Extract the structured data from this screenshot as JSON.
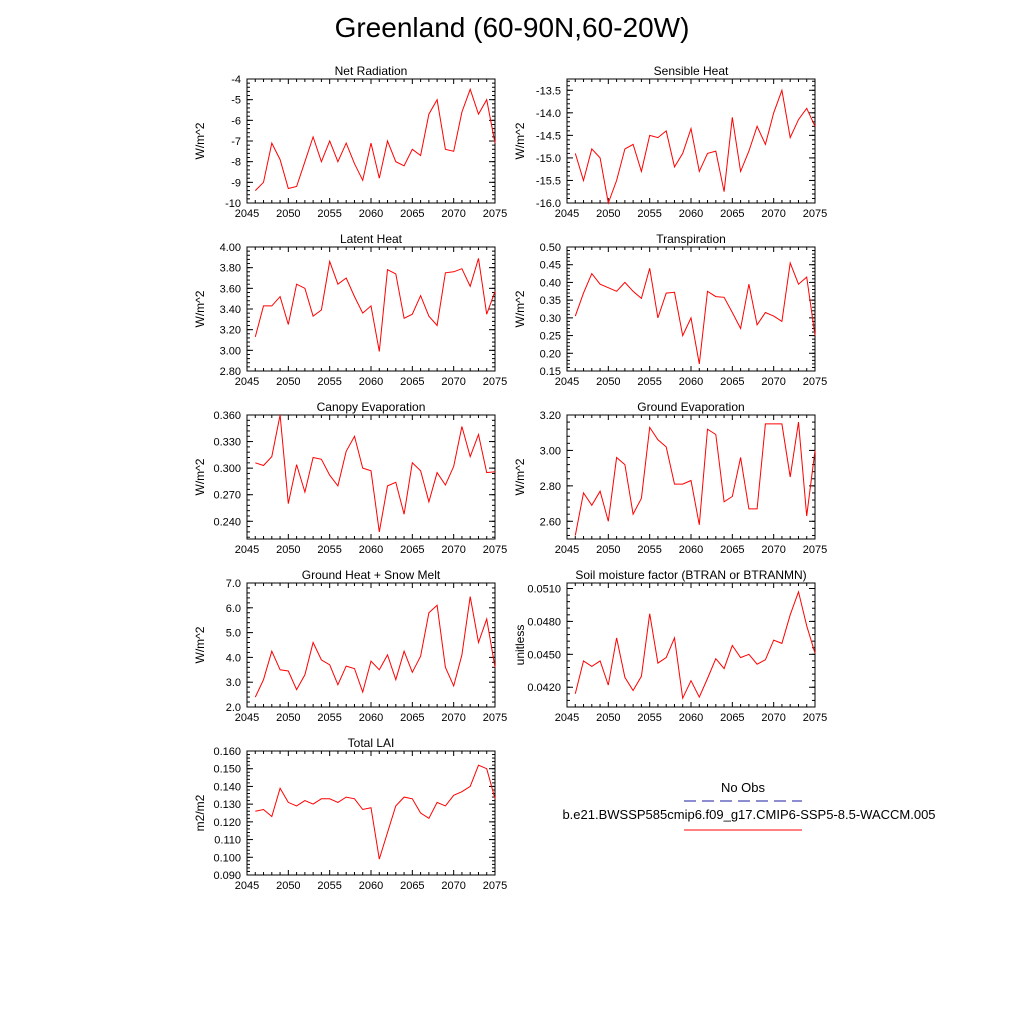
{
  "title": "Greenland (60-90N,60-20W)",
  "x_years": [
    2046,
    2047,
    2048,
    2049,
    2050,
    2051,
    2052,
    2053,
    2054,
    2055,
    2056,
    2057,
    2058,
    2059,
    2060,
    2061,
    2062,
    2063,
    2064,
    2065,
    2066,
    2067,
    2068,
    2069,
    2070,
    2071,
    2072,
    2073,
    2074,
    2075
  ],
  "legend": {
    "entries": [
      {
        "label": "No Obs",
        "color": "#1a1aa0",
        "dash": true
      },
      {
        "label": "b.e21.BWSSP585cmip6.f09_g17.CMIP6-SSP5-8.5-WACCM.005",
        "color": "#ff0000",
        "dash": false
      }
    ]
  },
  "series_color": "#ff0000",
  "chart_data": [
    {
      "type": "line",
      "title": "Net Radiation",
      "ylabel": "W/m^2",
      "xlim": [
        2045,
        2075
      ],
      "ylim": [
        -10,
        -4
      ],
      "xticks": [
        2045,
        2050,
        2055,
        2060,
        2065,
        2070,
        2075
      ],
      "yticks": [
        -10,
        -9,
        -8,
        -7,
        -6,
        -5,
        -4
      ],
      "ytick_labels": [
        "-10",
        "-9",
        "-8",
        "-7",
        "-6",
        "-5",
        "-4"
      ],
      "values": [
        -9.4,
        -9.0,
        -7.1,
        -7.9,
        -9.3,
        -9.2,
        -8.0,
        -6.8,
        -8.0,
        -7.0,
        -8.0,
        -7.1,
        -8.1,
        -8.9,
        -7.1,
        -8.8,
        -7.0,
        -8.0,
        -8.2,
        -7.4,
        -7.7,
        -5.7,
        -5.0,
        -7.4,
        -7.5,
        -5.6,
        -4.5,
        -5.7,
        -5.0,
        -7.1
      ]
    },
    {
      "type": "line",
      "title": "Sensible Heat",
      "ylabel": "W/m^2",
      "xlim": [
        2045,
        2075
      ],
      "ylim": [
        -16,
        -13.25
      ],
      "xticks": [
        2045,
        2050,
        2055,
        2060,
        2065,
        2070,
        2075
      ],
      "yticks": [
        -16,
        -15.5,
        -15,
        -14.5,
        -14,
        -13.5
      ],
      "ytick_labels": [
        "-16.0",
        "-15.5",
        "-15.0",
        "-14.5",
        "-14.0",
        "-13.5"
      ],
      "values": [
        -14.9,
        -15.5,
        -14.8,
        -15.0,
        -16.0,
        -15.5,
        -14.8,
        -14.7,
        -15.3,
        -14.5,
        -14.55,
        -14.4,
        -15.2,
        -14.9,
        -14.35,
        -15.3,
        -14.9,
        -14.85,
        -15.75,
        -14.1,
        -15.3,
        -14.85,
        -14.3,
        -14.7,
        -14.0,
        -13.5,
        -14.55,
        -14.15,
        -13.9,
        -14.3
      ]
    },
    {
      "type": "line",
      "title": "Latent Heat",
      "ylabel": "W/m^2",
      "xlim": [
        2045,
        2075
      ],
      "ylim": [
        2.8,
        4.0
      ],
      "xticks": [
        2045,
        2050,
        2055,
        2060,
        2065,
        2070,
        2075
      ],
      "yticks": [
        2.8,
        3.0,
        3.2,
        3.4,
        3.6,
        3.8,
        4.0
      ],
      "ytick_labels": [
        "2.80",
        "3.00",
        "3.20",
        "3.40",
        "3.60",
        "3.80",
        "4.00"
      ],
      "values": [
        3.13,
        3.43,
        3.43,
        3.52,
        3.25,
        3.64,
        3.6,
        3.33,
        3.39,
        3.86,
        3.64,
        3.7,
        3.52,
        3.36,
        3.43,
        2.99,
        3.78,
        3.74,
        3.31,
        3.35,
        3.53,
        3.33,
        3.24,
        3.75,
        3.76,
        3.79,
        3.62,
        3.89,
        3.35,
        3.57
      ]
    },
    {
      "type": "line",
      "title": "Transpiration",
      "ylabel": "W/m^2",
      "xlim": [
        2045,
        2075
      ],
      "ylim": [
        0.15,
        0.5
      ],
      "xticks": [
        2045,
        2050,
        2055,
        2060,
        2065,
        2070,
        2075
      ],
      "yticks": [
        0.15,
        0.2,
        0.25,
        0.3,
        0.35,
        0.4,
        0.45,
        0.5
      ],
      "ytick_labels": [
        "0.15",
        "0.20",
        "0.25",
        "0.30",
        "0.35",
        "0.40",
        "0.45",
        "0.50"
      ],
      "values": [
        0.305,
        0.37,
        0.425,
        0.395,
        0.385,
        0.375,
        0.4,
        0.375,
        0.355,
        0.44,
        0.3,
        0.37,
        0.372,
        0.25,
        0.3,
        0.17,
        0.375,
        0.36,
        0.358,
        0.315,
        0.27,
        0.395,
        0.28,
        0.315,
        0.305,
        0.29,
        0.455,
        0.395,
        0.415,
        0.25
      ]
    },
    {
      "type": "line",
      "title": "Canopy Evaporation",
      "ylabel": "W/m^2",
      "xlim": [
        2045,
        2075
      ],
      "ylim": [
        0.22,
        0.36
      ],
      "xticks": [
        2045,
        2050,
        2055,
        2060,
        2065,
        2070,
        2075
      ],
      "yticks": [
        0.24,
        0.27,
        0.3,
        0.33,
        0.36
      ],
      "ytick_labels": [
        "0.240",
        "0.270",
        "0.300",
        "0.330",
        "0.360"
      ],
      "values": [
        0.306,
        0.303,
        0.313,
        0.36,
        0.26,
        0.304,
        0.273,
        0.312,
        0.31,
        0.292,
        0.28,
        0.319,
        0.336,
        0.3,
        0.297,
        0.228,
        0.28,
        0.284,
        0.248,
        0.306,
        0.297,
        0.262,
        0.295,
        0.281,
        0.302,
        0.347,
        0.313,
        0.338,
        0.295,
        0.296
      ]
    },
    {
      "type": "line",
      "title": "Ground Evaporation",
      "ylabel": "W/m^2",
      "xlim": [
        2045,
        2075
      ],
      "ylim": [
        2.5,
        3.2
      ],
      "xticks": [
        2045,
        2050,
        2055,
        2060,
        2065,
        2070,
        2075
      ],
      "yticks": [
        2.6,
        2.8,
        3.0,
        3.2
      ],
      "ytick_labels": [
        "2.60",
        "2.80",
        "3.00",
        "3.20"
      ],
      "values": [
        2.52,
        2.76,
        2.69,
        2.77,
        2.6,
        2.96,
        2.92,
        2.64,
        2.73,
        3.13,
        3.06,
        3.02,
        2.81,
        2.81,
        2.83,
        2.58,
        3.12,
        3.09,
        2.71,
        2.74,
        2.96,
        2.67,
        2.67,
        3.15,
        3.15,
        3.15,
        2.85,
        3.16,
        2.63,
        3.0
      ]
    },
    {
      "type": "line",
      "title": "Ground Heat + Snow Melt",
      "ylabel": "W/m^2",
      "xlim": [
        2045,
        2075
      ],
      "ylim": [
        2.0,
        7.0
      ],
      "xticks": [
        2045,
        2050,
        2055,
        2060,
        2065,
        2070,
        2075
      ],
      "yticks": [
        2,
        3,
        4,
        5,
        6,
        7
      ],
      "ytick_labels": [
        "2.0",
        "3.0",
        "4.0",
        "5.0",
        "6.0",
        "7.0"
      ],
      "values": [
        2.4,
        3.1,
        4.25,
        3.5,
        3.45,
        2.7,
        3.3,
        4.6,
        3.9,
        3.7,
        2.9,
        3.65,
        3.55,
        2.6,
        3.85,
        3.5,
        4.1,
        3.1,
        4.25,
        3.4,
        4.05,
        5.8,
        6.1,
        3.6,
        2.85,
        4.1,
        6.45,
        4.6,
        5.55,
        3.6
      ]
    },
    {
      "type": "line",
      "title": "Soil moisture factor (BTRAN or BTRANMN)",
      "ylabel": "unitless",
      "xlim": [
        2045,
        2075
      ],
      "ylim": [
        0.0402,
        0.0515
      ],
      "xticks": [
        2045,
        2050,
        2055,
        2060,
        2065,
        2070,
        2075
      ],
      "yticks": [
        0.042,
        0.045,
        0.048,
        0.051
      ],
      "ytick_labels": [
        "0.0420",
        "0.0450",
        "0.0480",
        "0.0510"
      ],
      "values": [
        0.0414,
        0.0444,
        0.0439,
        0.0444,
        0.0422,
        0.0465,
        0.0429,
        0.0417,
        0.043,
        0.0487,
        0.0442,
        0.0447,
        0.0465,
        0.041,
        0.0426,
        0.0411,
        0.0428,
        0.0446,
        0.0437,
        0.0458,
        0.0447,
        0.045,
        0.0441,
        0.0445,
        0.0463,
        0.046,
        0.0486,
        0.0507,
        0.0476,
        0.0451
      ]
    },
    {
      "type": "line",
      "title": "Total LAI",
      "ylabel": "m2/m2",
      "xlim": [
        2045,
        2075
      ],
      "ylim": [
        0.09,
        0.16
      ],
      "xticks": [
        2045,
        2050,
        2055,
        2060,
        2065,
        2070,
        2075
      ],
      "yticks": [
        0.09,
        0.1,
        0.11,
        0.12,
        0.13,
        0.14,
        0.15,
        0.16
      ],
      "ytick_labels": [
        "0.090",
        "0.100",
        "0.110",
        "0.120",
        "0.130",
        "0.140",
        "0.150",
        "0.160"
      ],
      "values": [
        0.126,
        0.127,
        0.123,
        0.139,
        0.131,
        0.129,
        0.132,
        0.13,
        0.133,
        0.133,
        0.131,
        0.134,
        0.133,
        0.127,
        0.128,
        0.099,
        0.114,
        0.129,
        0.134,
        0.133,
        0.125,
        0.122,
        0.131,
        0.129,
        0.135,
        0.137,
        0.14,
        0.152,
        0.15,
        0.133
      ]
    }
  ]
}
